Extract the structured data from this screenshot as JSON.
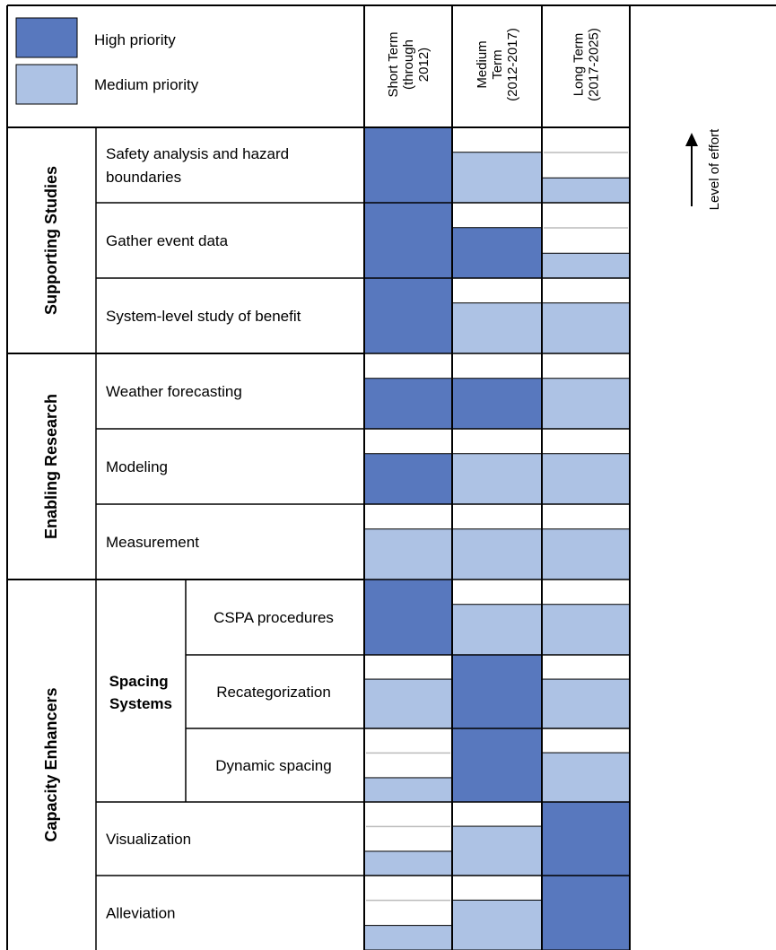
{
  "colors": {
    "high": "#5878be",
    "medium": "#adc2e4",
    "none": "#ffffff"
  },
  "legend": {
    "high_label": "High priority",
    "medium_label": "Medium priority"
  },
  "columns": [
    {
      "lines": [
        "Short Term",
        "(through",
        "2012)"
      ]
    },
    {
      "lines": [
        "Medium",
        "Term",
        "(2012-2017)"
      ]
    },
    {
      "lines": [
        "Long Term",
        "(2017-2025)"
      ]
    }
  ],
  "effort_label": "Level of effort",
  "categories": [
    {
      "label": "Supporting Studies"
    },
    {
      "label": "Enabling Research"
    },
    {
      "label": "Capacity Enhancers"
    }
  ],
  "subcategory": {
    "lines": [
      "Spacing",
      "Systems"
    ]
  },
  "rows": [
    {
      "lines": [
        "Safety analysis and hazard",
        "boundaries"
      ],
      "levels": [
        {
          "priority": "high",
          "effort": 1.0
        },
        {
          "priority": "medium",
          "effort": 0.67
        },
        {
          "priority": "medium",
          "effort": 0.33
        }
      ]
    },
    {
      "lines": [
        "Gather event data"
      ],
      "levels": [
        {
          "priority": "high",
          "effort": 1.0
        },
        {
          "priority": "high",
          "effort": 0.67
        },
        {
          "priority": "medium",
          "effort": 0.33
        }
      ]
    },
    {
      "lines": [
        "System-level study of benefit"
      ],
      "levels": [
        {
          "priority": "high",
          "effort": 1.0
        },
        {
          "priority": "medium",
          "effort": 0.67
        },
        {
          "priority": "medium",
          "effort": 0.67
        }
      ]
    },
    {
      "lines": [
        "Weather forecasting"
      ],
      "levels": [
        {
          "priority": "high",
          "effort": 0.67
        },
        {
          "priority": "high",
          "effort": 0.67
        },
        {
          "priority": "medium",
          "effort": 0.67
        }
      ]
    },
    {
      "lines": [
        "Modeling"
      ],
      "levels": [
        {
          "priority": "high",
          "effort": 0.67
        },
        {
          "priority": "medium",
          "effort": 0.67
        },
        {
          "priority": "medium",
          "effort": 0.67
        }
      ]
    },
    {
      "lines": [
        "Measurement"
      ],
      "levels": [
        {
          "priority": "medium",
          "effort": 0.67
        },
        {
          "priority": "medium",
          "effort": 0.67
        },
        {
          "priority": "medium",
          "effort": 0.67
        }
      ]
    },
    {
      "lines": [
        "CSPA procedures"
      ],
      "levels": [
        {
          "priority": "high",
          "effort": 1.0
        },
        {
          "priority": "medium",
          "effort": 0.67
        },
        {
          "priority": "medium",
          "effort": 0.67
        }
      ]
    },
    {
      "lines": [
        "Recategorization"
      ],
      "levels": [
        {
          "priority": "medium",
          "effort": 0.67
        },
        {
          "priority": "high",
          "effort": 1.0
        },
        {
          "priority": "medium",
          "effort": 0.67
        }
      ]
    },
    {
      "lines": [
        "Dynamic spacing"
      ],
      "levels": [
        {
          "priority": "medium",
          "effort": 0.33
        },
        {
          "priority": "high",
          "effort": 1.0
        },
        {
          "priority": "medium",
          "effort": 0.67
        }
      ]
    },
    {
      "lines": [
        "Visualization"
      ],
      "levels": [
        {
          "priority": "medium",
          "effort": 0.33
        },
        {
          "priority": "medium",
          "effort": 0.67
        },
        {
          "priority": "high",
          "effort": 1.0
        }
      ]
    },
    {
      "lines": [
        "Alleviation"
      ],
      "levels": [
        {
          "priority": "medium",
          "effort": 0.33
        },
        {
          "priority": "medium",
          "effort": 0.67
        },
        {
          "priority": "high",
          "effort": 1.0
        }
      ]
    }
  ]
}
